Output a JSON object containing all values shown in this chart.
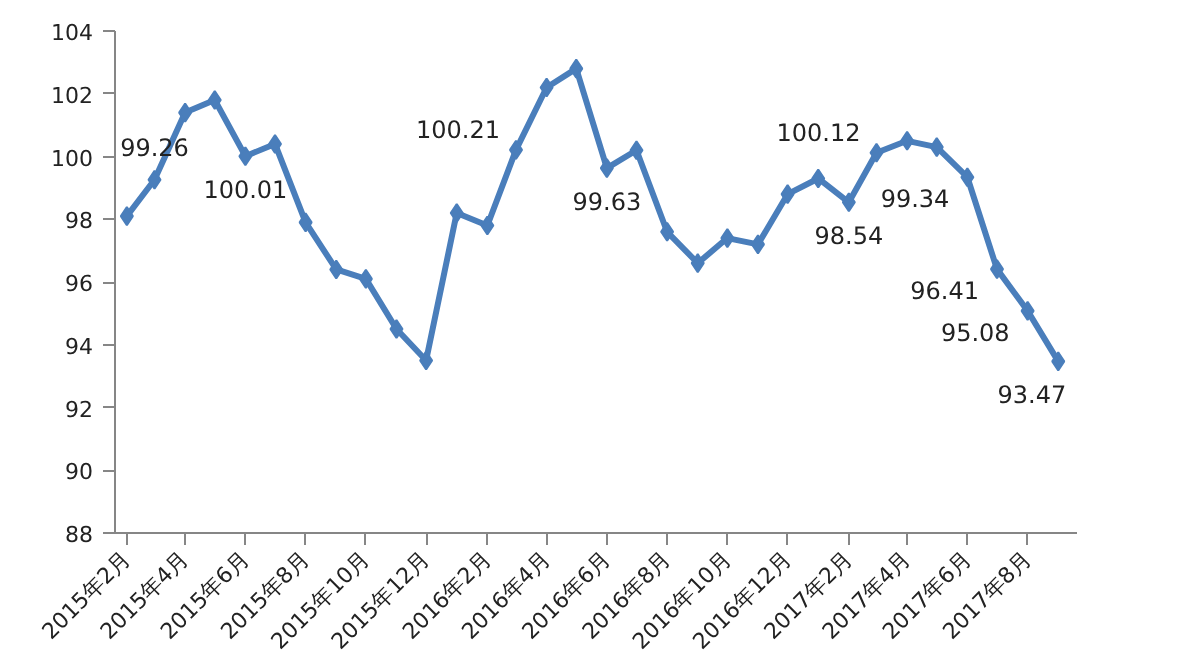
{
  "chart_data": {
    "type": "line",
    "marker": "diamond",
    "grid": false,
    "x": [
      "2015-02",
      "2015-03",
      "2015-04",
      "2015-05",
      "2015-06",
      "2015-07",
      "2015-08",
      "2015-09",
      "2015-10",
      "2015-11",
      "2015-12",
      "2016-01",
      "2016-02",
      "2016-03",
      "2016-04",
      "2016-05",
      "2016-06",
      "2016-07",
      "2016-08",
      "2016-09",
      "2016-10",
      "2016-11",
      "2016-12",
      "2017-01",
      "2017-02",
      "2017-03",
      "2017-04",
      "2017-05",
      "2017-06",
      "2017-07",
      "2017-08",
      "2017-09"
    ],
    "series": [
      {
        "color": "#4a7ebb",
        "values": [
          98.1,
          99.26,
          101.4,
          101.8,
          100.01,
          100.4,
          97.9,
          96.4,
          96.1,
          94.5,
          93.5,
          98.2,
          97.8,
          100.21,
          102.2,
          102.8,
          99.63,
          100.2,
          97.6,
          96.6,
          97.4,
          97.2,
          98.8,
          99.3,
          98.54,
          100.12,
          100.5,
          100.3,
          99.34,
          96.41,
          95.08,
          93.47
        ]
      }
    ],
    "ylim": [
      88,
      104
    ],
    "yticks": [
      88,
      90,
      92,
      94,
      96,
      98,
      100,
      102,
      104
    ],
    "xlim": [
      "2015-01-20",
      "2017-09-20"
    ],
    "xticks": [
      {
        "value": "2015-02",
        "label": "2015年2月"
      },
      {
        "value": "2015-04",
        "label": "2015年4月"
      },
      {
        "value": "2015-06",
        "label": "2015年6月"
      },
      {
        "value": "2015-08",
        "label": "2015年8月"
      },
      {
        "value": "2015-10",
        "label": "2015年10月"
      },
      {
        "value": "2015-12",
        "label": "2015年12月"
      },
      {
        "value": "2016-02",
        "label": "2016年2月"
      },
      {
        "value": "2016-04",
        "label": "2016年4月"
      },
      {
        "value": "2016-06",
        "label": "2016年6月"
      },
      {
        "value": "2016-08",
        "label": "2016年8月"
      },
      {
        "value": "2016-10",
        "label": "2016年10月"
      },
      {
        "value": "2016-12",
        "label": "2016年12月"
      },
      {
        "value": "2017-02",
        "label": "2017年2月"
      },
      {
        "value": "2017-04",
        "label": "2017年4月"
      },
      {
        "value": "2017-06",
        "label": "2017年6月"
      },
      {
        "value": "2017-08",
        "label": "2017年8月"
      }
    ],
    "annotations": [
      {
        "text": "99.26",
        "x": "2015-03",
        "y": 99.26
      },
      {
        "text": "100.01",
        "x": "2015-06",
        "y": 100.01
      },
      {
        "text": "100.21",
        "x": "2016-03",
        "y": 100.21
      },
      {
        "text": "99.63",
        "x": "2016-06",
        "y": 99.63
      },
      {
        "text": "98.54",
        "x": "2017-02",
        "y": 98.54
      },
      {
        "text": "100.12",
        "x": "2017-03",
        "y": 100.12
      },
      {
        "text": "99.34",
        "x": "2017-06",
        "y": 99.34
      },
      {
        "text": "96.41",
        "x": "2017-07",
        "y": 96.41
      },
      {
        "text": "95.08",
        "x": "2017-08",
        "y": 95.08
      },
      {
        "text": "93.47",
        "x": "2017-09",
        "y": 93.47
      }
    ]
  }
}
